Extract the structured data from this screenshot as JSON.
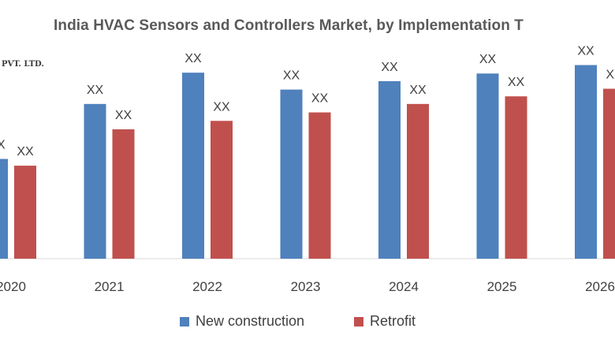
{
  "chart_data": {
    "type": "bar",
    "title": "India HVAC Sensors and Controllers Market, by Implementation T",
    "watermark": "PVT. LTD.",
    "xlabel": "",
    "ylabel": "",
    "categories": [
      "2020",
      "2021",
      "2022",
      "2023",
      "2024",
      "2025",
      "2026"
    ],
    "series": [
      {
        "name": "New construction",
        "color": "#4f81bd",
        "values": [
          118,
          183,
          220,
          200,
          210,
          219,
          229
        ],
        "labels": [
          "XX",
          "XX",
          "XX",
          "XX",
          "XX",
          "XX",
          "XX"
        ]
      },
      {
        "name": "Retrofit",
        "color": "#c0504d",
        "values": [
          110,
          153,
          163,
          173,
          183,
          192,
          201
        ],
        "labels": [
          "XX",
          "XX",
          "XX",
          "XX",
          "XX",
          "XX",
          "XX"
        ]
      }
    ],
    "ylim": [
      0,
      250
    ],
    "grid": false,
    "axis_line_color": "#d9d9d9",
    "legend_position": "bottom"
  }
}
